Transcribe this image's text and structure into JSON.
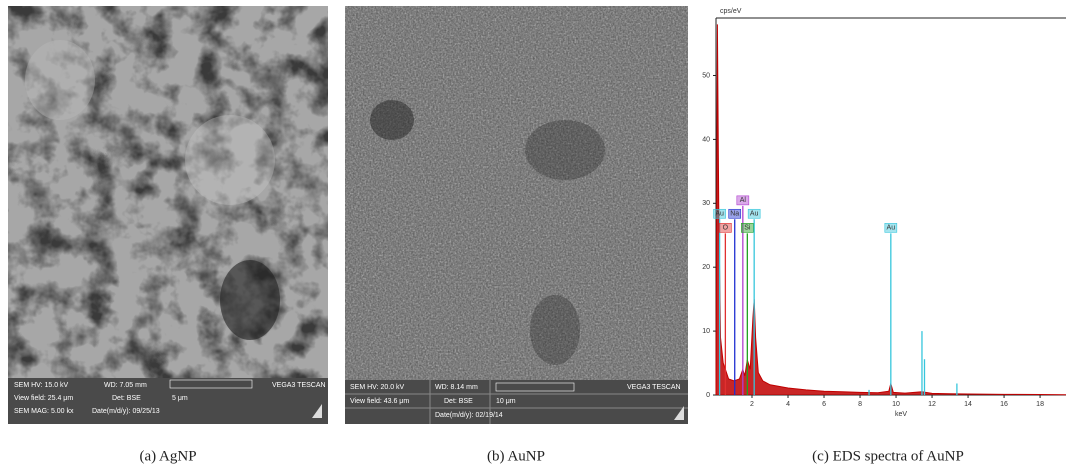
{
  "panels": [
    {
      "caption": "(a) AgNP",
      "hv": "SEM HV: 15.0 kV",
      "wd": "WD: 7.05 mm",
      "brand": "VEGA3 TESCAN",
      "view": "View field: 25.4 μm",
      "det": "Det: BSE",
      "scale": "5 μm",
      "mag": "SEM MAG: 5.00 kx",
      "date": "Date(m/d/y): 09/25/13"
    },
    {
      "caption": "(b) AuNP",
      "hv": "SEM HV: 20.0 kV",
      "wd": "WD: 8.14 mm",
      "brand": "VEGA3 TESCAN",
      "view": "View field: 43.6 μm",
      "det": "Det: BSE",
      "scale": "10 μm",
      "date": "Date(m/d/y): 02/19/14"
    }
  ],
  "chart_data": {
    "type": "line",
    "caption": "(c) EDS spectra of AuNP",
    "y_label": "cps/eV",
    "x_label": "keV",
    "xlim": [
      0,
      19.44
    ],
    "xticks": [
      2,
      4,
      6,
      8,
      10,
      12,
      14,
      16,
      18
    ],
    "ylim": [
      0,
      59
    ],
    "yticks": [
      0,
      10,
      20,
      30,
      40,
      50
    ],
    "spectrum": {
      "color": "#c00000",
      "x": [
        0.0,
        0.08,
        0.15,
        0.25,
        0.4,
        0.52,
        0.7,
        1.0,
        1.3,
        1.49,
        1.6,
        1.74,
        1.9,
        2.05,
        2.12,
        2.2,
        2.35,
        2.6,
        3.0,
        4.0,
        5.0,
        6.0,
        7.0,
        8.0,
        9.0,
        9.6,
        9.71,
        9.85,
        10.5,
        11.44,
        12.0,
        13.0,
        14.0,
        16.0,
        18.0,
        19.44
      ],
      "values": [
        0,
        58,
        30,
        9,
        5,
        4,
        2.5,
        2.2,
        2.5,
        4,
        3,
        5.5,
        4,
        12,
        15,
        9,
        3.5,
        2.2,
        1.6,
        1.1,
        0.8,
        0.6,
        0.5,
        0.4,
        0.35,
        0.6,
        1.8,
        0.4,
        0.3,
        0.5,
        0.25,
        0.2,
        0.15,
        0.1,
        0.08,
        0.05
      ]
    },
    "peaks": [
      {
        "label": "Au",
        "x": 0.2,
        "height": 27.5,
        "color": "#36c6dc"
      },
      {
        "label": "O",
        "x": 0.52,
        "height": 25.3,
        "color": "#e03030"
      },
      {
        "label": "Na",
        "x": 1.04,
        "height": 27.5,
        "color": "#2030d0"
      },
      {
        "label": "Al",
        "x": 1.49,
        "height": 29.6,
        "color": "#b040d0"
      },
      {
        "label": "Si",
        "x": 1.74,
        "height": 25.3,
        "color": "#20a020"
      },
      {
        "label": "Au",
        "x": 2.12,
        "height": 27.5,
        "color": "#36c6dc"
      },
      {
        "label": "Au",
        "x": 9.71,
        "height": 25.3,
        "color": "#36c6dc"
      },
      {
        "x": 11.44,
        "height": 10,
        "color": "#36c6dc"
      },
      {
        "x": 11.58,
        "height": 5.6,
        "color": "#36c6dc"
      },
      {
        "x": 13.38,
        "height": 1.8,
        "color": "#36c6dc"
      },
      {
        "x": 8.5,
        "height": 0.8,
        "color": "#36c6dc"
      }
    ]
  }
}
